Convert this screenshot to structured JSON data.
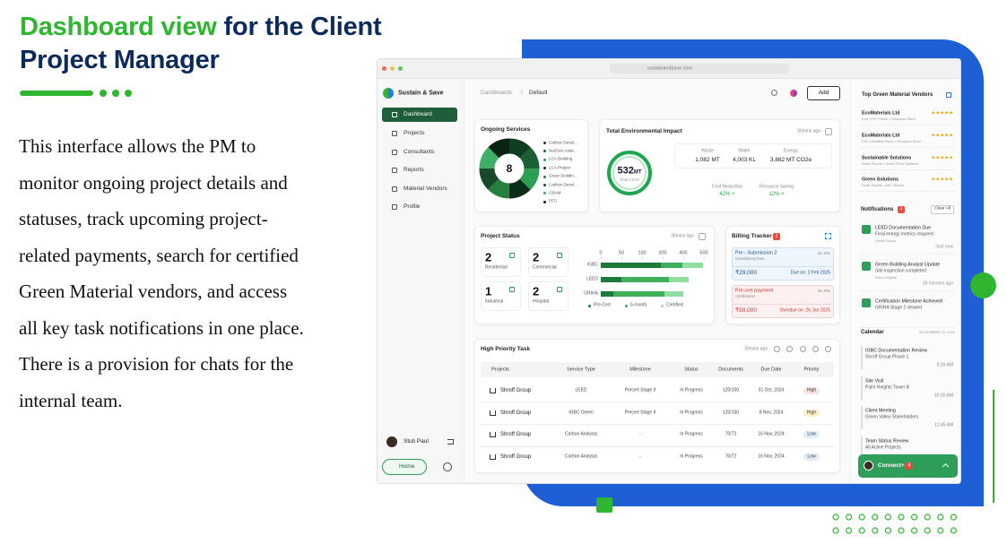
{
  "slide": {
    "title_green": "Dashboard view",
    "title_rest": "for the Client",
    "title_line2": "Project Manager",
    "body": "This interface allows the PM to monitor ongoing project details and statuses, track upcoming project-related payments, search for certified Green Material vendors, and access all key task notifications in one place. There is a provision for chats for the internal team."
  },
  "browser": {
    "url": "sustainandsave.com"
  },
  "sidebar": {
    "brand": "Sustain & Save",
    "nav": [
      "Dashboard",
      "Projects",
      "Consultants",
      "Reports",
      "Material Vendors",
      "Profile"
    ],
    "user": "Stuti Paul",
    "home": "Home"
  },
  "topbar": {
    "breadcrumb": [
      "Dashboards",
      "/",
      "Default"
    ],
    "add": "Add"
  },
  "ongoing_services": {
    "title": "Ongoing Services",
    "center": "8",
    "items": [
      {
        "name": "Carbon Devel...",
        "color": "#0f3d22",
        "value": 1
      },
      {
        "name": "NetZero Asse...",
        "color": "#1b5e34",
        "value": 1
      },
      {
        "name": "LCA Building",
        "color": "#2e9e52",
        "value": 1
      },
      {
        "name": "LCA Project",
        "color": "#0b2e1a",
        "value": 1
      },
      {
        "name": "Green Buildin...",
        "color": "#23803f",
        "value": 1
      },
      {
        "name": "Carbon Devel...",
        "color": "#164a2b",
        "value": 1
      },
      {
        "name": "CBAM",
        "color": "#3db065",
        "value": 1
      },
      {
        "name": "PFC",
        "color": "#0a2414",
        "value": 1
      }
    ]
  },
  "environmental_impact": {
    "title": "Total Environmental Impact",
    "updated": "30mins ago",
    "total": "532",
    "total_unit": "MT",
    "total_label": "Total CO2e",
    "metrics": [
      {
        "label": "Waste",
        "value": "1,082 MT"
      },
      {
        "label": "Water",
        "value": "4,003 KL"
      },
      {
        "label": "Energy",
        "value": "3,882 MT CO2e"
      }
    ],
    "changes": [
      {
        "label": "Cost Reduction",
        "value": "42% +"
      },
      {
        "label": "Resource Saving",
        "value": "12% +"
      }
    ]
  },
  "project_status": {
    "title": "Project Status",
    "updated": "30mins ago",
    "counts": [
      {
        "value": "2",
        "label": "Residential"
      },
      {
        "value": "2",
        "label": "Commercial"
      },
      {
        "value": "1",
        "label": "Industrial"
      },
      {
        "value": "2",
        "label": "Hospital"
      }
    ],
    "chart": {
      "type": "bar",
      "categories": [
        "IGBC",
        "LEED",
        "GRIHA"
      ],
      "series": [
        {
          "name": "Pre-Cert",
          "color": "#1e7a3c",
          "values": [
            280,
            50,
            30
          ]
        },
        {
          "name": "6-month",
          "color": "#3fae5a",
          "values": [
            115,
            280,
            280
          ]
        },
        {
          "name": "Certified",
          "color": "#8fe0a0",
          "values": [
            100,
            95,
            90
          ]
        }
      ],
      "xticks": [
        0,
        50,
        100,
        300,
        400,
        500
      ],
      "xlim": [
        0,
        500
      ]
    }
  },
  "billing_tracker": {
    "title": "Billing Tracker",
    "badge": "2",
    "items": [
      {
        "title": "Pre - Submission 2",
        "sub": "Consultancy fees",
        "id": "GL-001",
        "amount": "₹29,000",
        "due": "Due on: 2 Feb 2025"
      },
      {
        "title": "Pre-cert payment",
        "sub": "Certification",
        "id": "GL-001",
        "amount": "₹50,000",
        "due": "Overdue on: 26 Jan 2025"
      }
    ]
  },
  "high_priority_task": {
    "title": "High Priority Task",
    "updated": "30mins ago",
    "columns": [
      "Projects",
      "Service Type",
      "Milestone",
      "Status",
      "Documents",
      "Due Date",
      "Priority"
    ],
    "rows": [
      [
        "Shroff Group",
        "LEED",
        "Precert Stage II",
        "In Progress",
        "120/150",
        "31 Oct, 2024",
        "High"
      ],
      [
        "Shroff Group",
        "IGBC Green",
        "Precert Stage II",
        "In Progress",
        "120/150",
        "8 Nov, 2024",
        "High"
      ],
      [
        "Shroff Group",
        "Carbon Analysis",
        "-",
        "In Progress",
        "70/72",
        "16 Nov, 2024",
        "Low"
      ],
      [
        "Shroff Group",
        "Carbon Analysis",
        "-",
        "In Progress",
        "70/72",
        "16 Nov, 2024",
        "Low"
      ]
    ],
    "priority_colors": [
      "#fde2e2",
      "#fdf1c4",
      "#e2ecfb",
      "#e2ecfb"
    ]
  },
  "vendors": {
    "title": "Top Green Material Vendors",
    "items": [
      {
        "name": "EcoMaterials Ltd",
        "desc": "Low VOC Paints • Recycled Steel",
        "stars": "★★★★★"
      },
      {
        "name": "EcoMaterials Ltd",
        "desc": "FSC Certified Wood • Recycled Steel",
        "stars": "★★★★★"
      },
      {
        "name": "Sustainable Solutions",
        "desc": "Solar Panels • Green Roof Systems",
        "stars": "★★★★★"
      },
      {
        "name": "Green Solutions",
        "desc": "Solar Panels • AAC Blocks",
        "stars": "★★★★★"
      }
    ]
  },
  "notifications": {
    "title": "Notifications",
    "badge": "4",
    "clear": "Clear All",
    "items": [
      {
        "title": "LEED Documentation Due",
        "text": "Final energy metrics required",
        "from": "Shroff Group",
        "time": "Just now"
      },
      {
        "title": "Green Building Analyst Update",
        "text": "Site inspection completed",
        "from": "Palm Heights",
        "time": "39 minutes ago"
      },
      {
        "title": "Certification Milestone Achieved",
        "text": "GRIHA Stage 2 cleared"
      }
    ]
  },
  "calendar": {
    "title": "Calendar",
    "date": "NOVEMBER 22, 2024",
    "events": [
      {
        "title": "IGBC Documentation Review",
        "sub": "Shroff Group Phase 1",
        "time": "9:30 AM"
      },
      {
        "title": "Site Visit",
        "sub": "Palm Heights Tower B",
        "time": "10:30 AM"
      },
      {
        "title": "Client Meeting",
        "sub": "Green Valley Stakeholders",
        "time": "11:45 AM"
      },
      {
        "title": "Team Status Review",
        "sub": "All Active Projects"
      }
    ]
  },
  "chat": {
    "label": "Connect+",
    "badge": "4"
  }
}
